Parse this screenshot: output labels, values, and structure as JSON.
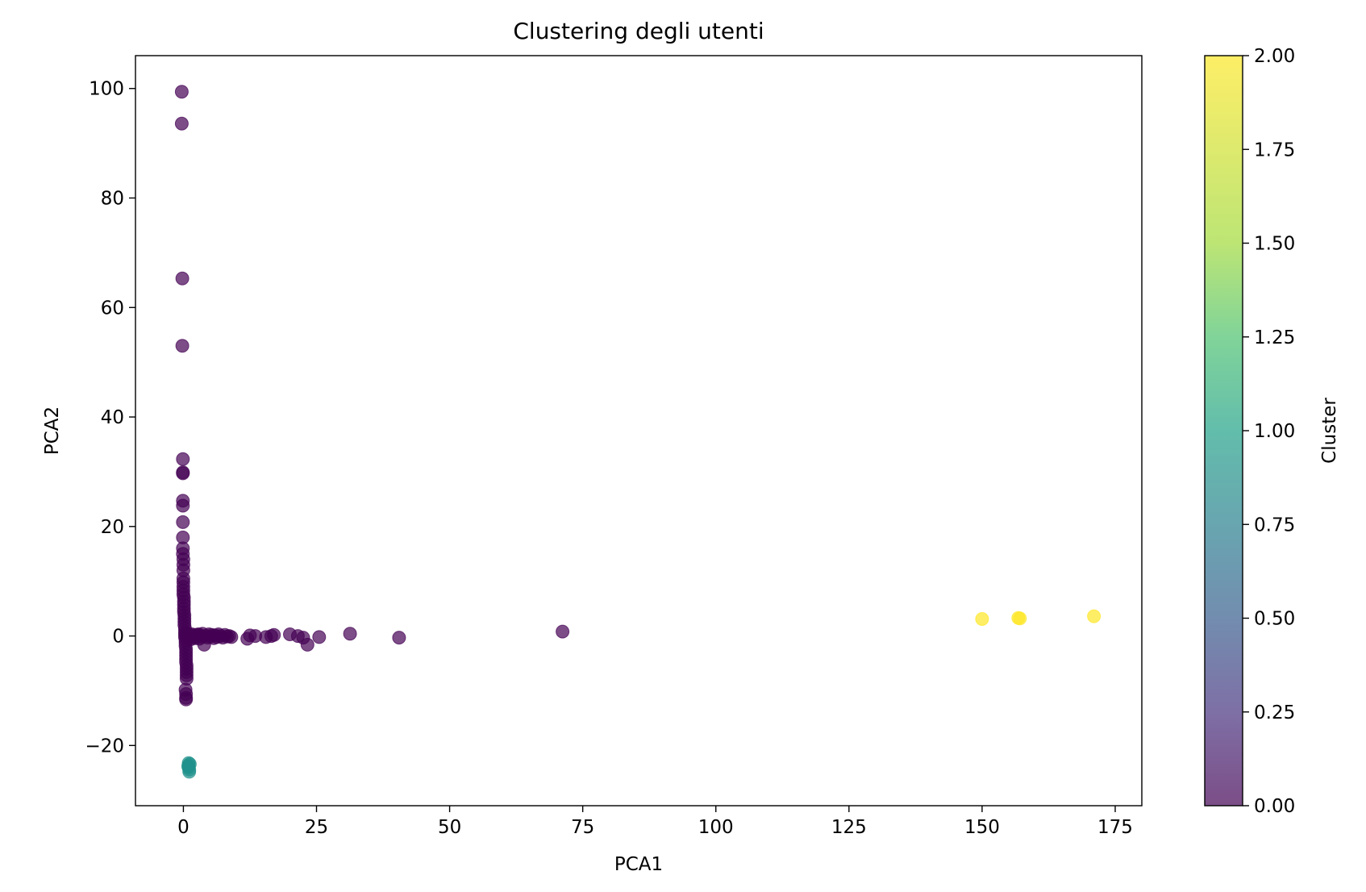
{
  "chart_data": {
    "type": "scatter",
    "title": "Clustering degli utenti",
    "xlabel": "PCA1",
    "ylabel": "PCA2",
    "xlim": [
      -9,
      180
    ],
    "ylim": [
      -31,
      106
    ],
    "xticks": [
      0,
      25,
      50,
      75,
      100,
      125,
      150,
      175
    ],
    "yticks": [
      -20,
      0,
      20,
      40,
      60,
      80,
      100
    ],
    "xtick_labels": [
      "0",
      "25",
      "50",
      "75",
      "100",
      "125",
      "150",
      "175"
    ],
    "ytick_labels": [
      "−20",
      "0",
      "20",
      "40",
      "60",
      "80",
      "100"
    ],
    "grid": false,
    "marker_alpha": 0.7,
    "colorbar": {
      "label": "Cluster",
      "range": [
        0,
        2
      ],
      "colormap": "viridis",
      "ticks": [
        0,
        0.25,
        0.5,
        0.75,
        1.0,
        1.25,
        1.5,
        1.75,
        2.0
      ],
      "tick_labels": [
        "0.00",
        "0.25",
        "0.50",
        "0.75",
        "1.00",
        "1.25",
        "1.50",
        "1.75",
        "2.00"
      ]
    },
    "series": [
      {
        "cluster": 0,
        "color": "#440154",
        "points": [
          [
            -0.3,
            99.4
          ],
          [
            -0.3,
            93.6
          ],
          [
            -0.2,
            65.3
          ],
          [
            -0.2,
            53.0
          ],
          [
            -0.1,
            32.3
          ],
          [
            -0.1,
            29.9
          ],
          [
            -0.1,
            29.7
          ],
          [
            -0.1,
            24.7
          ],
          [
            -0.1,
            23.8
          ],
          [
            -0.1,
            20.8
          ],
          [
            -0.1,
            18.0
          ],
          [
            -0.1,
            16.0
          ],
          [
            -0.1,
            15.0
          ],
          [
            0.0,
            14.0
          ],
          [
            0.0,
            13.0
          ],
          [
            0.0,
            12.0
          ],
          [
            0.0,
            10.5
          ],
          [
            0.0,
            9.8
          ],
          [
            0.0,
            9.0
          ],
          [
            0.0,
            8.3
          ],
          [
            0.0,
            7.6
          ],
          [
            0.1,
            7.0
          ],
          [
            0.1,
            6.3
          ],
          [
            0.1,
            5.7
          ],
          [
            0.1,
            5.0
          ],
          [
            0.1,
            4.4
          ],
          [
            0.2,
            3.8
          ],
          [
            0.2,
            3.2
          ],
          [
            0.2,
            2.6
          ],
          [
            0.2,
            2.0
          ],
          [
            0.3,
            1.4
          ],
          [
            0.3,
            0.8
          ],
          [
            0.3,
            0.3
          ],
          [
            0.3,
            -0.2
          ],
          [
            0.4,
            -0.7
          ],
          [
            0.4,
            -1.2
          ],
          [
            0.4,
            -1.8
          ],
          [
            0.5,
            -2.4
          ],
          [
            0.5,
            -3.0
          ],
          [
            0.5,
            -3.6
          ],
          [
            0.5,
            -4.2
          ],
          [
            0.5,
            -4.8
          ],
          [
            0.6,
            -5.4
          ],
          [
            0.6,
            -6.0
          ],
          [
            0.6,
            -6.6
          ],
          [
            0.6,
            -7.2
          ],
          [
            0.6,
            -7.8
          ],
          [
            0.4,
            -9.8
          ],
          [
            0.5,
            -10.6
          ],
          [
            0.5,
            -11.3
          ],
          [
            0.5,
            -11.6
          ],
          [
            0.6,
            0.4
          ],
          [
            0.8,
            0.1
          ],
          [
            1.0,
            -0.3
          ],
          [
            1.2,
            0.2
          ],
          [
            1.4,
            -0.6
          ],
          [
            1.6,
            0.3
          ],
          [
            1.8,
            -0.2
          ],
          [
            2.0,
            0.1
          ],
          [
            2.2,
            -0.4
          ],
          [
            2.4,
            0.2
          ],
          [
            2.6,
            -0.1
          ],
          [
            2.8,
            0.3
          ],
          [
            3.0,
            -0.5
          ],
          [
            3.2,
            0.1
          ],
          [
            3.4,
            -0.2
          ],
          [
            3.6,
            0.4
          ],
          [
            3.9,
            -1.6
          ],
          [
            4.2,
            0.0
          ],
          [
            4.5,
            -0.3
          ],
          [
            4.8,
            0.3
          ],
          [
            5.1,
            -0.1
          ],
          [
            5.4,
            0.2
          ],
          [
            5.7,
            -0.4
          ],
          [
            6.0,
            0.1
          ],
          [
            6.3,
            -0.2
          ],
          [
            6.6,
            0.3
          ],
          [
            7.0,
            0.0
          ],
          [
            7.4,
            -0.3
          ],
          [
            7.8,
            0.2
          ],
          [
            8.2,
            -0.1
          ],
          [
            8.6,
            0.0
          ],
          [
            9.0,
            -0.2
          ],
          [
            12.0,
            -0.5
          ],
          [
            12.5,
            0.1
          ],
          [
            13.5,
            0.0
          ],
          [
            15.5,
            -0.2
          ],
          [
            16.5,
            0.0
          ],
          [
            17.0,
            0.2
          ],
          [
            20.0,
            0.3
          ],
          [
            21.5,
            0.0
          ],
          [
            22.5,
            -0.3
          ],
          [
            23.3,
            -1.6
          ],
          [
            25.5,
            -0.2
          ],
          [
            31.3,
            0.4
          ],
          [
            40.5,
            -0.3
          ],
          [
            71.2,
            0.8
          ]
        ]
      },
      {
        "cluster": 1,
        "color": "#21918c",
        "points": [
          [
            1.0,
            -23.2
          ],
          [
            1.0,
            -23.6
          ],
          [
            1.0,
            -24.0
          ],
          [
            1.1,
            -24.4
          ],
          [
            1.1,
            -24.8
          ],
          [
            0.9,
            -23.8
          ],
          [
            1.2,
            -23.4
          ]
        ]
      },
      {
        "cluster": 2,
        "color": "#fde725",
        "points": [
          [
            150.0,
            3.1
          ],
          [
            156.8,
            3.3
          ],
          [
            157.1,
            3.2
          ],
          [
            171.0,
            3.6
          ]
        ]
      }
    ]
  }
}
